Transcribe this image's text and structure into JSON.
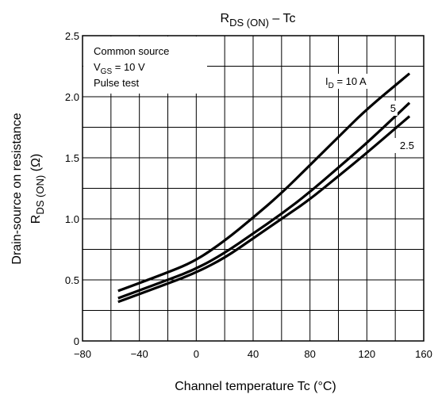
{
  "chart_data": {
    "type": "line",
    "title": {
      "main": "R",
      "sub": "DS (ON)",
      "rest": " – Tc"
    },
    "xlabel": "Channel temperature    Tc    (°C)",
    "ylabel": {
      "line1": "Drain-source on resistance",
      "line2_main": "R",
      "line2_sub": "DS (ON)",
      "line2_rest": "    (Ω)"
    },
    "xlim": [
      -80,
      160
    ],
    "ylim": [
      0,
      2.5
    ],
    "grid": true,
    "x_ticks": [
      -80,
      -40,
      0,
      40,
      80,
      120,
      160
    ],
    "x_tick_labels": [
      "−80",
      "−40",
      "0",
      "40",
      "80",
      "120",
      "160"
    ],
    "y_ticks": [
      0,
      0.5,
      1.0,
      1.5,
      2.0,
      2.5
    ],
    "y_tick_labels": [
      "0",
      "0.5",
      "1.0",
      "1.5",
      "2.0",
      "2.5"
    ],
    "conditions": {
      "line1": "Common source",
      "line2_main": "V",
      "line2_sub": "GS",
      "line2_rest": " = 10 V",
      "line3": "Pulse test"
    },
    "series": [
      {
        "label_main": "I",
        "label_sub": "D",
        "label_rest": " = 10 A",
        "x": [
          -55,
          -20,
          0,
          20,
          40,
          60,
          80,
          100,
          120,
          150
        ],
        "y": [
          0.41,
          0.56,
          0.66,
          0.82,
          1.01,
          1.21,
          1.44,
          1.67,
          1.9,
          2.19
        ]
      },
      {
        "label_main": "5",
        "label_sub": "",
        "label_rest": "",
        "x": [
          -55,
          -20,
          0,
          20,
          40,
          60,
          80,
          100,
          120,
          150
        ],
        "y": [
          0.35,
          0.5,
          0.59,
          0.72,
          0.88,
          1.04,
          1.22,
          1.42,
          1.62,
          1.95
        ]
      },
      {
        "label_main": "2.5",
        "label_sub": "",
        "label_rest": "",
        "x": [
          -55,
          -20,
          0,
          20,
          40,
          60,
          80,
          100,
          120,
          150
        ],
        "y": [
          0.32,
          0.47,
          0.56,
          0.68,
          0.84,
          1.0,
          1.16,
          1.35,
          1.54,
          1.84
        ]
      }
    ]
  }
}
